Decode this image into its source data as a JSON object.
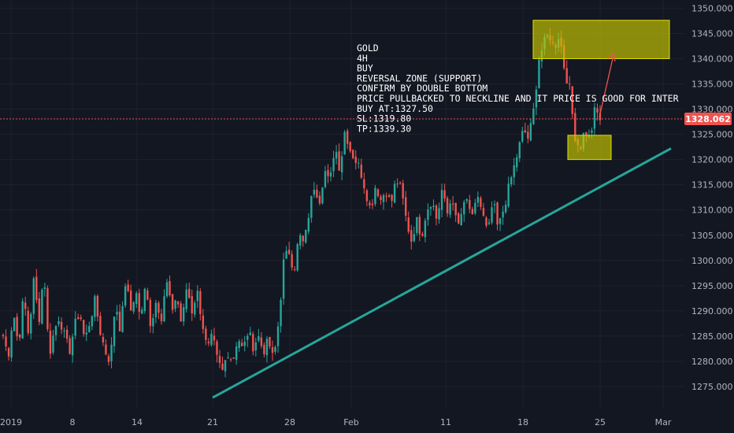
{
  "chart_data": {
    "type": "candlestick",
    "y_axis": {
      "range": [
        1272.5,
        1351.0
      ],
      "ticks": [
        1275,
        1280,
        1285,
        1290,
        1295,
        1300,
        1305,
        1310,
        1315,
        1320,
        1325,
        1330,
        1335,
        1340,
        1345,
        1350
      ],
      "tick_labels": [
        "1275.000",
        "1280.000",
        "1285.000",
        "1290.000",
        "1295.000",
        "1300.000",
        "1305.000",
        "1310.000",
        "1315.000",
        "1320.000",
        "1325.000",
        "1330.000",
        "1335.000",
        "1340.000",
        "1345.000",
        "1350.000"
      ]
    },
    "x_axis": {
      "tick_labels": [
        "2019",
        "8",
        "14",
        "21",
        "28",
        "Feb",
        "11",
        "18",
        "25",
        "Mar"
      ]
    },
    "current_price": 1328.062,
    "current_price_label": "1328.062",
    "annotation_lines": [
      "GOLD",
      "4H",
      "BUY",
      "REVERSAL ZONE (SUPPORT)",
      "CONFIRM BY DOUBLE BOTTOM",
      "PRICE PULLBACKED TO NECKLINE AND IT PRICE IS GOOD FOR INTER BUY",
      "BUY AT:1327.50",
      "SL:1319.80",
      "TP:1339.30"
    ],
    "zones": [
      {
        "name": "target-zone",
        "y_low": 1340.0,
        "y_high": 1347.6
      },
      {
        "name": "support-zone",
        "y_low": 1320.0,
        "y_high": 1324.8
      }
    ],
    "trendline": {
      "from_price": 1272.8,
      "to_price": 1322.2
    },
    "price_path": [
      1285,
      1281,
      1290,
      1283,
      1293,
      1285,
      1296,
      1288,
      1298,
      1281,
      1286,
      1289,
      1285,
      1282,
      1287,
      1290,
      1284,
      1288,
      1292,
      1286,
      1282,
      1280,
      1292,
      1286,
      1296,
      1290,
      1294,
      1288,
      1296,
      1286,
      1293,
      1288,
      1296,
      1290,
      1293,
      1287,
      1295,
      1290,
      1294,
      1288,
      1282,
      1285,
      1280,
      1278,
      1282,
      1280,
      1285,
      1282,
      1286,
      1283,
      1285,
      1282,
      1284,
      1280,
      1288,
      1300,
      1302,
      1298,
      1305,
      1303,
      1310,
      1315,
      1312,
      1318,
      1315,
      1323,
      1318,
      1326,
      1322,
      1320,
      1318,
      1314,
      1310,
      1315,
      1312,
      1314,
      1311,
      1316,
      1314,
      1308,
      1304,
      1308,
      1305,
      1310,
      1312,
      1308,
      1314,
      1309,
      1313,
      1306,
      1310,
      1312,
      1308,
      1313,
      1309,
      1305,
      1312,
      1306,
      1310,
      1314,
      1318,
      1322,
      1326,
      1324,
      1330,
      1340,
      1343,
      1345,
      1342,
      1345,
      1338,
      1334,
      1325,
      1322,
      1326,
      1324,
      1330,
      1328
    ]
  }
}
